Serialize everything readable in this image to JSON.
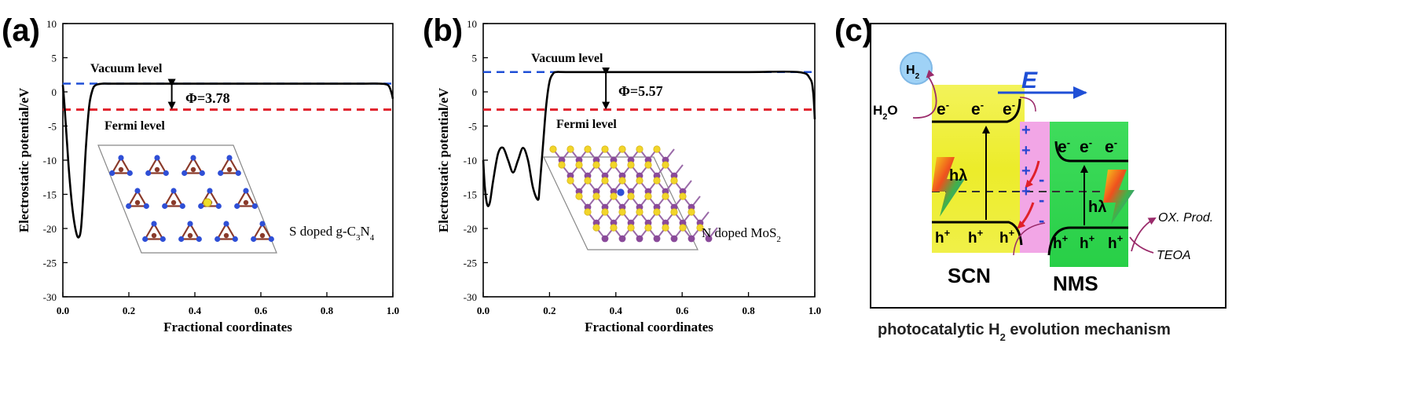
{
  "panel_a": {
    "label": "(a)",
    "chart_data": {
      "type": "line",
      "xlabel": "Fractional coordinates",
      "ylabel": "Electrostatic potential/eV",
      "xlim": [
        0.0,
        1.0
      ],
      "ylim": [
        -30,
        10
      ],
      "xticks": [
        "0.0",
        "0.2",
        "0.4",
        "0.6",
        "0.8",
        "1.0"
      ],
      "yticks": [
        "10",
        "5",
        "0",
        "-5",
        "-10",
        "-15",
        "-20",
        "-25",
        "-30"
      ],
      "vacuum_level": 1.2,
      "fermi_level": -2.6,
      "series": [
        {
          "name": "potential",
          "x": [
            0.0,
            0.005,
            0.012,
            0.02,
            0.03,
            0.04,
            0.048,
            0.055,
            0.062,
            0.07,
            0.08,
            0.09,
            0.1,
            0.12,
            0.15,
            0.3,
            0.5,
            0.7,
            0.9,
            0.96,
            0.985,
            0.995,
            1.0
          ],
          "y": [
            1.0,
            -2.0,
            -7.0,
            -12.5,
            -17.5,
            -20.5,
            -21.3,
            -20.0,
            -15.0,
            -8.0,
            -2.0,
            0.3,
            1.0,
            1.2,
            1.2,
            1.2,
            1.2,
            1.2,
            1.2,
            1.2,
            1.0,
            0.0,
            -1.0
          ]
        }
      ]
    },
    "annotations": {
      "vacuum": "Vacuum level",
      "fermi": "Fermi level",
      "phi": "Φ=3.78",
      "material_main": "S doped g-C",
      "material_sub1": "3",
      "material_mid": "N",
      "material_sub2": "4"
    }
  },
  "panel_b": {
    "label": "(b)",
    "chart_data": {
      "type": "line",
      "xlabel": "Fractional coordinates",
      "ylabel": "Electrostatic potential/eV",
      "xlim": [
        0.0,
        1.0
      ],
      "ylim": [
        -30,
        10
      ],
      "xticks": [
        "0.0",
        "0.2",
        "0.4",
        "0.6",
        "0.8",
        "1.0"
      ],
      "yticks": [
        "10",
        "5",
        "0",
        "-5",
        "-10",
        "-15",
        "-20",
        "-25",
        "-30"
      ],
      "vacuum_level": 2.9,
      "fermi_level": -2.6,
      "series": [
        {
          "name": "potential",
          "x": [
            0.0,
            0.005,
            0.012,
            0.02,
            0.03,
            0.045,
            0.06,
            0.075,
            0.09,
            0.105,
            0.12,
            0.135,
            0.15,
            0.165,
            0.17,
            0.18,
            0.19,
            0.2,
            0.21,
            0.22,
            0.25,
            0.4,
            0.6,
            0.8,
            0.95,
            0.985,
            0.995,
            1.0
          ],
          "y": [
            -10.0,
            -14.0,
            -16.5,
            -16.2,
            -13.0,
            -9.0,
            -8.2,
            -10.0,
            -11.8,
            -10.0,
            -8.2,
            -10.0,
            -14.0,
            -15.8,
            -14.0,
            -8.0,
            -2.0,
            1.5,
            2.6,
            2.9,
            2.9,
            2.9,
            2.9,
            2.9,
            2.9,
            2.0,
            0.0,
            -4.0
          ]
        }
      ]
    },
    "annotations": {
      "vacuum": "Vacuum level",
      "fermi": "Fermi level",
      "phi": "Φ=5.57",
      "material_main": "N doped MoS",
      "material_sub": "2"
    }
  },
  "panel_c": {
    "label": "(c)",
    "h2": "H",
    "h2_sub": "2",
    "h2o": "H",
    "h2o_sub": "2",
    "h2o_end": "O",
    "field": "E",
    "electron": "e",
    "electron_sup": "-",
    "hole": "h",
    "hole_sup": "+",
    "hv": "hλ",
    "plus": "+",
    "minus": "-",
    "ox_prod": "OX. Prod.",
    "teoa": "TEOA",
    "scn": "SCN",
    "nms": "NMS",
    "caption_pre": "photocatalytic H",
    "caption_sub": "2",
    "caption_post": " evolution mechanism",
    "colors": {
      "scn": "#f1f032",
      "nms": "#2fd94f",
      "interface": "#f2a6e6",
      "arrow": "#1f4fd6",
      "h2_bubble": "#9fd2f6"
    }
  }
}
